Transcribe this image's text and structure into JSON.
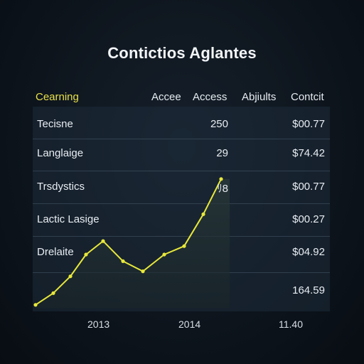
{
  "chart_data": {
    "type": "table",
    "title": "Contictios Aglantes",
    "columns": [
      "Cearning",
      "Accee",
      "Access",
      "Abjiults",
      "Contcit"
    ],
    "rows": [
      {
        "label": "Tecisne",
        "access": "250",
        "contcit": "$00.77"
      },
      {
        "label": "Langlaige",
        "access": "29",
        "contcit": "$74.42"
      },
      {
        "label": "Trsdystics",
        "access": "ﾘ8",
        "contcit": "$00.77"
      },
      {
        "label": "Lactic Lasige",
        "access": "",
        "contcit": "$00.27"
      },
      {
        "label": "Drelaite",
        "access": "",
        "contcit": "$04.92"
      },
      {
        "label": "",
        "access": "",
        "contcit": "164.59"
      }
    ],
    "line_series": {
      "color": "#e8e83a",
      "values": [
        0.02,
        0.09,
        0.19,
        0.32,
        0.4,
        0.28,
        0.22,
        0.32,
        0.37,
        0.56,
        0.77
      ]
    },
    "x_ticks": [
      "2013",
      "2014",
      "11.40"
    ]
  },
  "colors": {
    "accent": "#e8e83a",
    "header_accent": "#e8e04a"
  }
}
